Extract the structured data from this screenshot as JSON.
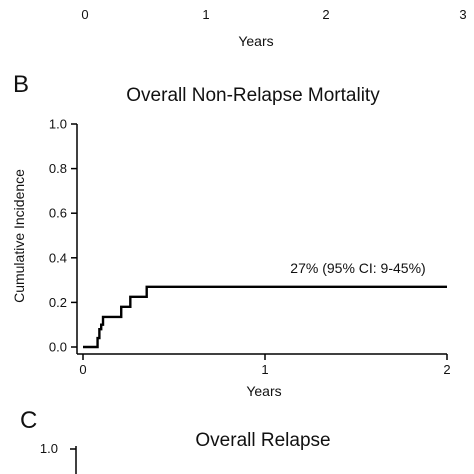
{
  "panel_a": {
    "xticks": [
      "0",
      "1",
      "2",
      "3"
    ],
    "xlabel": "Years"
  },
  "panel_b": {
    "letter": "B",
    "chart_data": {
      "type": "line",
      "title": "Overall Non-Relapse Mortality",
      "xlabel": "Years",
      "ylabel": "Cumulative Incidence",
      "xlim": [
        0,
        2
      ],
      "ylim": [
        0,
        1.0
      ],
      "xticks": [
        "0",
        "1",
        "2"
      ],
      "yticks": [
        "0.0",
        "0.2",
        "0.4",
        "0.6",
        "0.8",
        "1.0"
      ],
      "grid": false,
      "step": true,
      "x": [
        0,
        0.08,
        0.09,
        0.1,
        0.11,
        0.2,
        0.21,
        0.25,
        0.26,
        0.34,
        0.35,
        2.0
      ],
      "y": [
        0,
        0.04,
        0.08,
        0.1,
        0.135,
        0.135,
        0.18,
        0.18,
        0.225,
        0.225,
        0.27,
        0.27
      ],
      "annotation": "27% (95% CI: 9-45%)"
    }
  },
  "panel_c": {
    "letter": "C",
    "title": "Overall Relapse",
    "ytick_top": "1.0"
  },
  "colors": {
    "line": "#000000",
    "axis": "#000000"
  }
}
